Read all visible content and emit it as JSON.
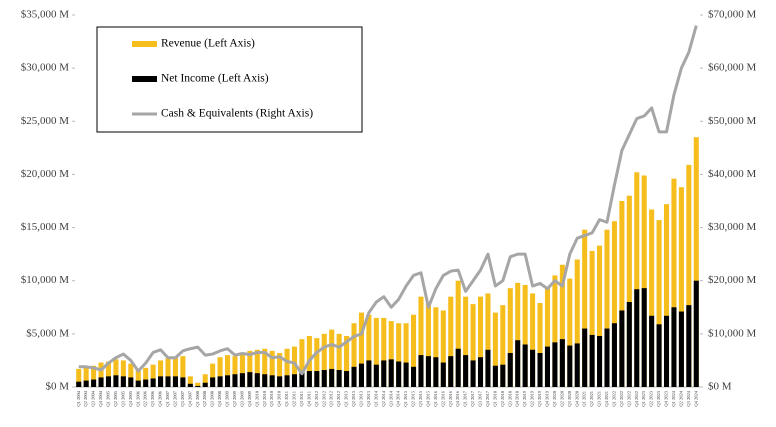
{
  "chart_data": {
    "type": "bar-line",
    "categories": [
      "Q1 2004",
      "Q2 2004",
      "Q3 2004",
      "Q4 2004",
      "Q1 2005",
      "Q2 2005",
      "Q3 2005",
      "Q4 2005",
      "Q1 2006",
      "Q2 2006",
      "Q3 2006",
      "Q4 2006",
      "Q1 2007",
      "Q2 2007",
      "Q3 2007",
      "Q4 2007",
      "Q1 2008",
      "Q2 2008",
      "Q3 2008",
      "Q4 2008",
      "Q1 2009",
      "Q2 2009",
      "Q3 2009",
      "Q4 2009",
      "Q1 2010",
      "Q2 2010",
      "Q3 2010",
      "Q4 2010",
      "Q1 2011",
      "Q2 2011",
      "Q3 2011",
      "Q4 2011",
      "Q1 2012",
      "Q2 2012",
      "Q3 2012",
      "Q4 2012",
      "Q1 2013",
      "Q2 2013",
      "Q3 2013",
      "Q4 2013",
      "Q1 2014",
      "Q2 2014",
      "Q3 2014",
      "Q4 2014",
      "Q1 2015",
      "Q2 2015",
      "Q3 2015",
      "Q4 2015",
      "Q1 2016",
      "Q2 2016",
      "Q3 2016",
      "Q4 2016",
      "Q1 2017",
      "Q2 2017",
      "Q3 2017",
      "Q4 2017",
      "Q1 2018",
      "Q2 2018",
      "Q3 2018",
      "Q4 2018",
      "Q1 2019",
      "Q2 2019",
      "Q3 2019",
      "Q4 2019",
      "Q1 2020",
      "Q2 2020",
      "Q3 2020",
      "Q4 2020",
      "Q1 2021",
      "Q2 2021",
      "Q3 2021",
      "Q4 2021",
      "Q1 2022",
      "Q2 2022",
      "Q3 2022",
      "Q4 2022",
      "Q1 2023",
      "Q2 2023",
      "Q3 2023",
      "Q4 2023",
      "Q1 2024",
      "Q2 2024",
      "Q3 2024",
      "Q4 2024"
    ],
    "series": [
      {
        "name": "Revenue (Left Axis)",
        "color": "#f5be1c",
        "kind": "bar",
        "axis": "y",
        "values": [
          1700,
          1800,
          2000,
          2300,
          2400,
          2600,
          2500,
          2200,
          1600,
          1800,
          2100,
          2500,
          2700,
          2800,
          2900,
          1000,
          400,
          1200,
          2200,
          2800,
          3000,
          2900,
          3100,
          3400,
          3500,
          3600,
          3400,
          3200,
          3600,
          3800,
          4500,
          4800,
          4600,
          5000,
          5400,
          5000,
          4800,
          6000,
          7000,
          6800,
          6500,
          6500,
          6200,
          6000,
          6000,
          6800,
          8500,
          8000,
          7500,
          7200,
          8500,
          10000,
          8500,
          7800,
          8500,
          8800,
          7000,
          7700,
          9300,
          9800,
          9600,
          8800,
          7900,
          9400,
          10500,
          11500,
          10200,
          12000,
          14800,
          12800,
          13300,
          14800,
          15600,
          17500,
          18000,
          20200,
          19900,
          16700,
          15700,
          17200,
          19600,
          18800,
          20900,
          23500
        ]
      },
      {
        "name": "Net Income (Left Axis)",
        "color": "#000000",
        "kind": "bar",
        "axis": "y",
        "values": [
          500,
          600,
          700,
          900,
          1000,
          1100,
          1000,
          900,
          600,
          700,
          800,
          1000,
          1000,
          1000,
          900,
          300,
          100,
          400,
          900,
          1000,
          1100,
          1200,
          1300,
          1400,
          1300,
          1200,
          1100,
          1000,
          1100,
          1200,
          1400,
          1500,
          1500,
          1600,
          1700,
          1600,
          1500,
          1900,
          2200,
          2500,
          2100,
          2500,
          2600,
          2400,
          2300,
          1900,
          3000,
          2900,
          2800,
          2300,
          2900,
          3600,
          3000,
          2500,
          2800,
          3500,
          2000,
          2100,
          3200,
          4400,
          4000,
          3500,
          3200,
          3800,
          4200,
          4500,
          3900,
          4100,
          5500,
          4900,
          4800,
          5500,
          6000,
          7200,
          8000,
          9200,
          9300,
          6700,
          5900,
          6700,
          7500,
          7100,
          7700,
          10000
        ]
      },
      {
        "name": "Cash & Equivalents (Right Axis)",
        "color": "#a6a6a6",
        "kind": "line",
        "axis": "y2",
        "values": [
          3800,
          3800,
          3600,
          3200,
          4500,
          5500,
          6200,
          5000,
          3000,
          4500,
          6500,
          7000,
          5500,
          5500,
          6800,
          7200,
          7500,
          6000,
          6200,
          6800,
          7200,
          6000,
          6300,
          6100,
          6500,
          6500,
          5500,
          5700,
          4800,
          4500,
          2500,
          5000,
          6500,
          7500,
          8000,
          7500,
          8500,
          9500,
          10000,
          14000,
          16000,
          17000,
          15000,
          16500,
          19000,
          21000,
          21500,
          15000,
          18500,
          21000,
          21800,
          22000,
          18000,
          20000,
          22000,
          25000,
          19000,
          20000,
          24500,
          25000,
          25000,
          19000,
          19500,
          18500,
          20000,
          19000,
          25000,
          28000,
          28500,
          29000,
          31500,
          31000,
          38000,
          44500,
          47500,
          50500,
          51000,
          52500,
          48000,
          48000,
          55000,
          60000,
          63000,
          68000
        ]
      }
    ],
    "ylim": [
      0,
      35000
    ],
    "yticks": [
      {
        "value": 0,
        "label": "$0 M"
      },
      {
        "value": 5000,
        "label": "$5,000 M"
      },
      {
        "value": 10000,
        "label": "$10,000 M"
      },
      {
        "value": 15000,
        "label": "$15,000 M"
      },
      {
        "value": 20000,
        "label": "$20,000 M"
      },
      {
        "value": 25000,
        "label": "$25,000 M"
      },
      {
        "value": 30000,
        "label": "$30,000 M"
      },
      {
        "value": 35000,
        "label": "$35,000 M"
      }
    ],
    "y2lim": [
      0,
      70000
    ],
    "y2ticks": [
      {
        "value": 0,
        "label": "$0 M"
      },
      {
        "value": 10000,
        "label": "$10,000 M"
      },
      {
        "value": 20000,
        "label": "$20,000 M"
      },
      {
        "value": 30000,
        "label": "$30,000 M"
      },
      {
        "value": 40000,
        "label": "$40,000 M"
      },
      {
        "value": 50000,
        "label": "$50,000 M"
      },
      {
        "value": 60000,
        "label": "$60,000 M"
      },
      {
        "value": 70000,
        "label": "$70,000 M"
      }
    ],
    "legend": "upper left"
  }
}
